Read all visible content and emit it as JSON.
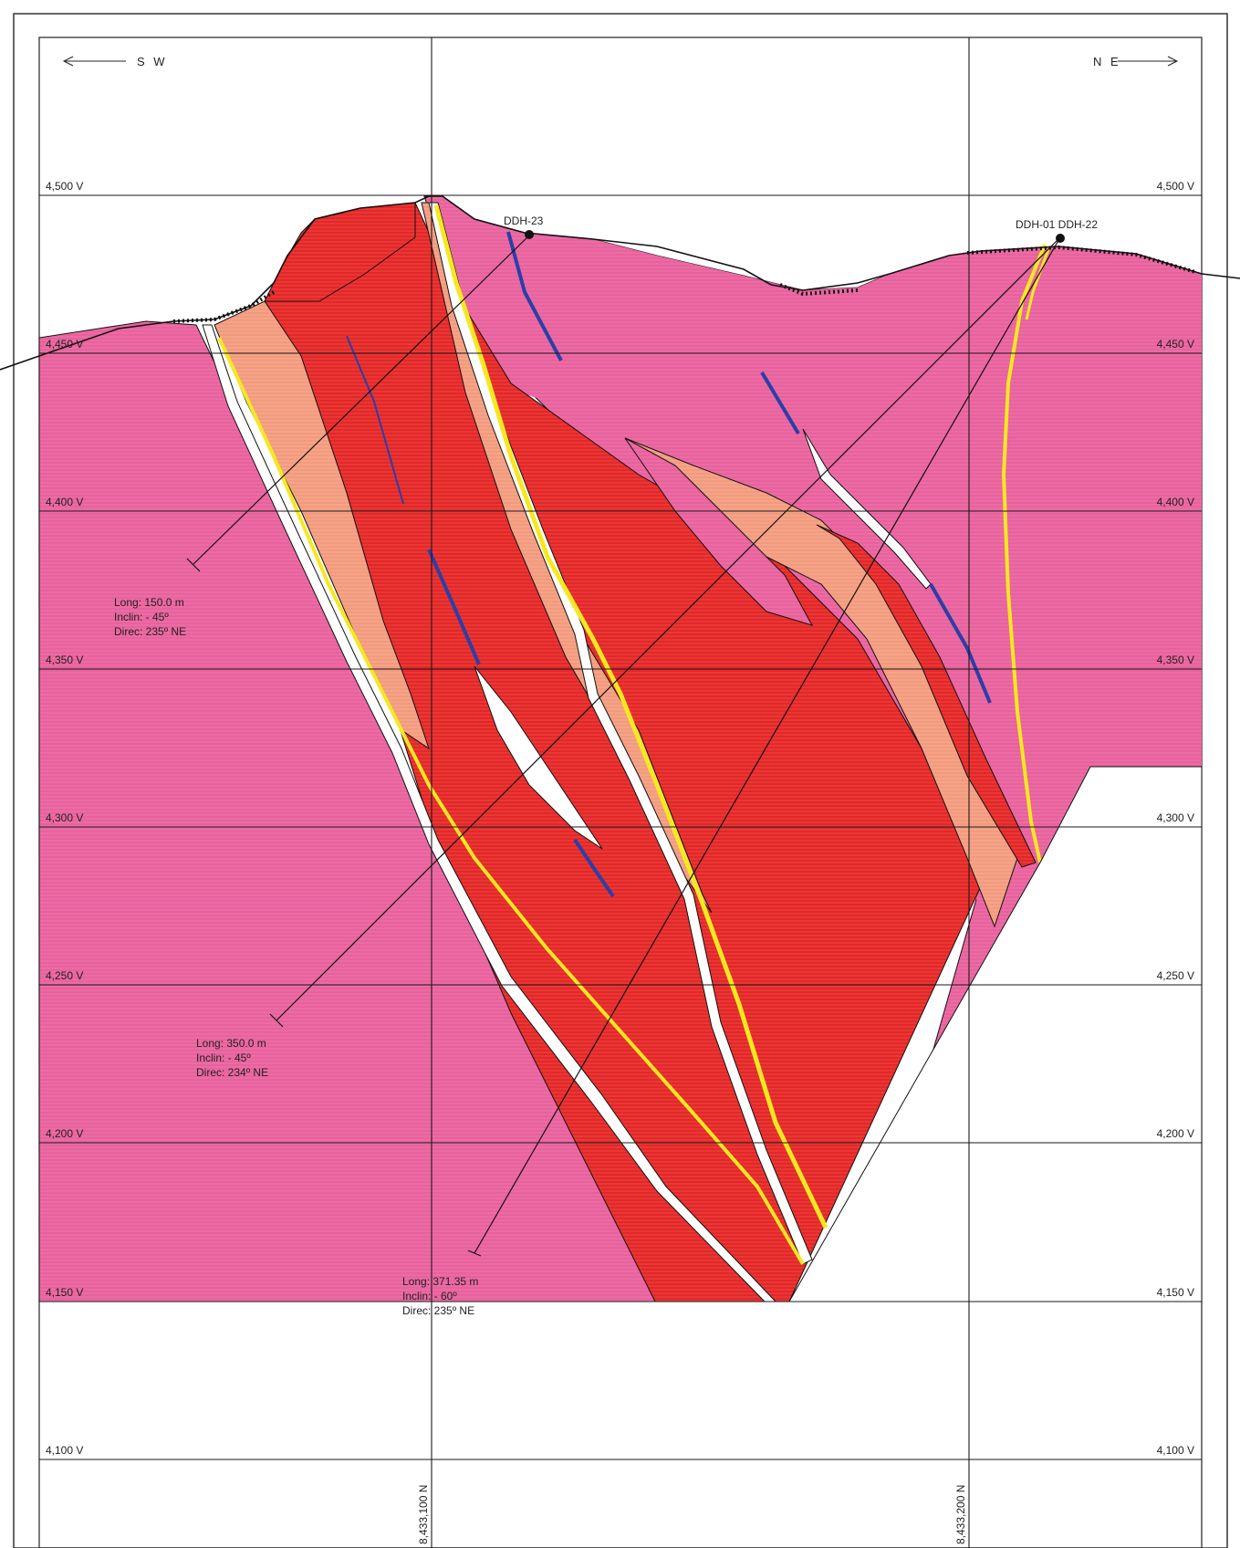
{
  "directions": {
    "left": "S W",
    "right": "N E"
  },
  "elevation_labels": [
    "4,500 V",
    "4,450 V",
    "4,400 V",
    "4,350 V",
    "4,300 V",
    "4,250 V",
    "4,200 V",
    "4,150 V",
    "4,100 V"
  ],
  "northing_labels": [
    "8,433,100 N",
    "8,433,200 N"
  ],
  "drillholes": {
    "collar_left": "DDH-23",
    "collar_right": "DDH-01 DDH-22",
    "hole_a": {
      "long": "Long:   150.0 m",
      "inclin": "Inclin:   - 45º",
      "direc": "Direc:   235º NE"
    },
    "hole_b": {
      "long": "Long:   350.0 m",
      "inclin": "Inclin:   - 45º",
      "direc": "Direc:   234º NE"
    },
    "hole_c": {
      "long": "Long:   371.35 m",
      "inclin": "Inclin:   - 60º",
      "direc": "Direc:   235º NE"
    }
  },
  "colors": {
    "host_rock": "#e8619d",
    "intrusive_red": "#e3272c",
    "altered_salmon": "#f39a7d",
    "yellow_vein": "#f5e821",
    "blue_fault": "#2a3fa8",
    "grid": "#1a1a1a"
  }
}
